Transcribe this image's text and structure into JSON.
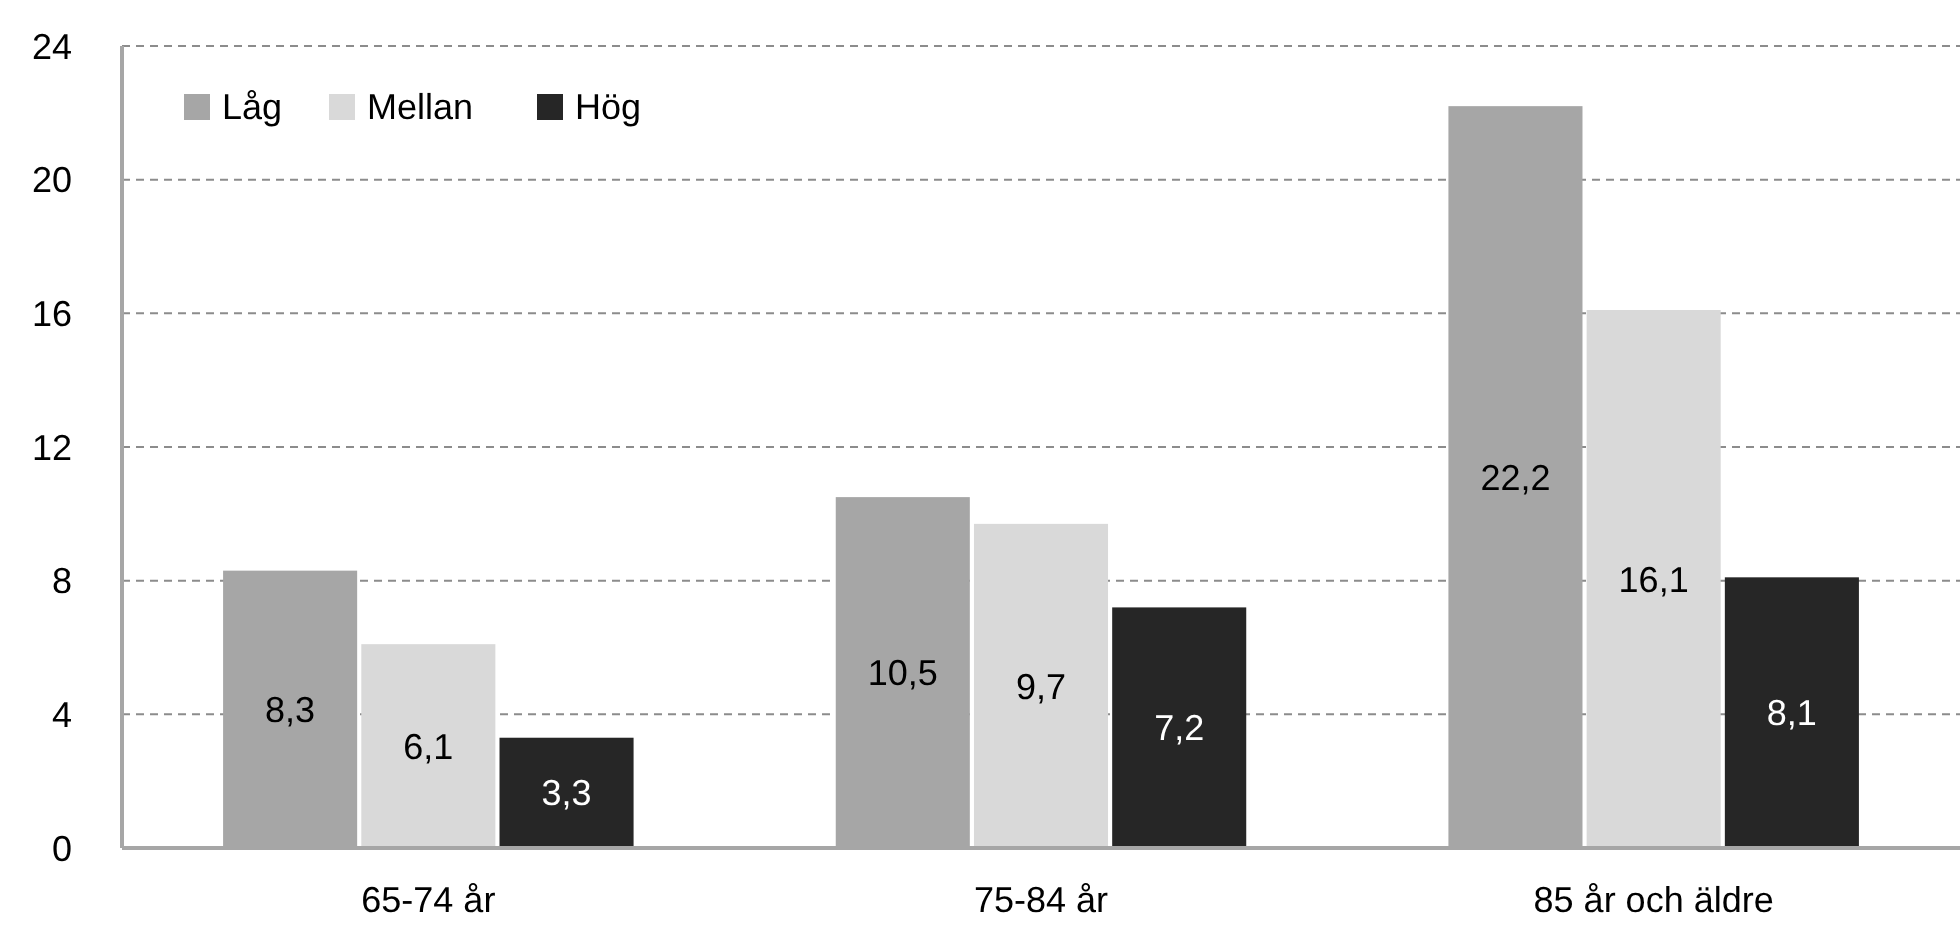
{
  "chart_data": {
    "type": "bar",
    "categories": [
      "65-74 år",
      "75-84 år",
      "85 år och äldre"
    ],
    "series": [
      {
        "name": "Låg",
        "color": "#a6a6a6",
        "values": [
          8.3,
          10.5,
          22.2
        ],
        "value_labels": [
          "8,3",
          "10,5",
          "22,2"
        ]
      },
      {
        "name": "Mellan",
        "color": "#d9d9d9",
        "values": [
          6.1,
          9.7,
          16.1
        ],
        "value_labels": [
          "6,1",
          "9,7",
          "16,1"
        ]
      },
      {
        "name": "Hög",
        "color": "#262626",
        "values": [
          3.3,
          7.2,
          8.1
        ],
        "value_labels": [
          "3,3",
          "7,2",
          "8,1"
        ]
      }
    ],
    "ylim": [
      0,
      24
    ],
    "yticks": [
      0,
      4,
      8,
      12,
      16,
      20,
      24
    ],
    "grid": "y",
    "legend": "top left"
  }
}
